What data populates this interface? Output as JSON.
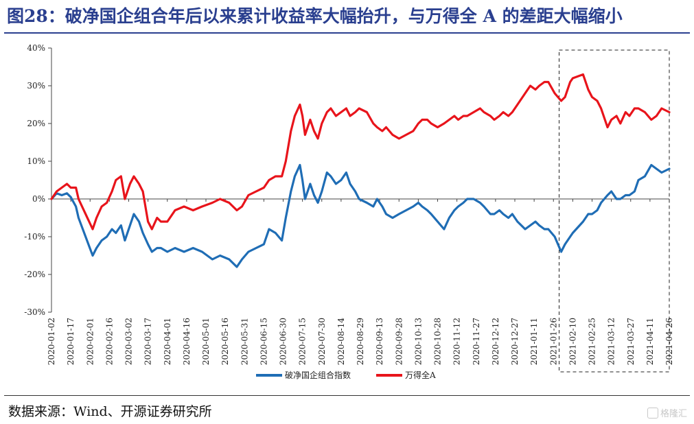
{
  "title": "图28：破净国企组合年后以来累计收益率大幅抬升，与万得全 A 的差距大幅缩小",
  "source": "数据来源：Wind、开源证券研究所",
  "watermark": "格隆汇",
  "chart_data": {
    "type": "line",
    "title": "",
    "xlabel": "",
    "ylabel": "",
    "ylim": [
      -30,
      40
    ],
    "yticks": [
      "-30%",
      "-20%",
      "-10%",
      "0%",
      "10%",
      "20%",
      "30%",
      "40%"
    ],
    "x_tick_labels": [
      "2020-01-02",
      "2020-01-17",
      "2020-02-01",
      "2020-02-16",
      "2020-03-02",
      "2020-03-17",
      "2020-04-01",
      "2020-04-16",
      "2020-05-01",
      "2020-05-16",
      "2020-05-31",
      "2020-06-15",
      "2020-06-30",
      "2020-07-15",
      "2020-07-30",
      "2020-08-14",
      "2020-08-29",
      "2020-09-13",
      "2020-09-28",
      "2020-10-13",
      "2020-10-28",
      "2020-11-12",
      "2020-11-27",
      "2020-12-12",
      "2020-12-27",
      "2021-01-11",
      "2021-01-26",
      "2021-02-10",
      "2021-02-25",
      "2021-03-12",
      "2021-03-27",
      "2021-04-11",
      "2021-04-26"
    ],
    "x_range": [
      "2020-01-02",
      "2021-04-26"
    ],
    "grid": false,
    "legend": "bottom-center",
    "highlight_region": [
      "2021-02-01",
      "2021-04-26"
    ],
    "series": [
      {
        "name": "破净国企组合指数",
        "color": "#1f6db5",
        "points": [
          [
            "2020-01-02",
            0
          ],
          [
            "2020-01-06",
            1.5
          ],
          [
            "2020-01-10",
            1
          ],
          [
            "2020-01-14",
            1.5
          ],
          [
            "2020-01-17",
            0.5
          ],
          [
            "2020-01-21",
            -2
          ],
          [
            "2020-01-23",
            -5
          ],
          [
            "2020-02-03",
            -15
          ],
          [
            "2020-02-06",
            -13
          ],
          [
            "2020-02-10",
            -11
          ],
          [
            "2020-02-14",
            -10
          ],
          [
            "2020-02-18",
            -8
          ],
          [
            "2020-02-21",
            -9
          ],
          [
            "2020-02-25",
            -7
          ],
          [
            "2020-02-28",
            -11
          ],
          [
            "2020-03-03",
            -7
          ],
          [
            "2020-03-06",
            -4
          ],
          [
            "2020-03-10",
            -6
          ],
          [
            "2020-03-13",
            -9
          ],
          [
            "2020-03-17",
            -12
          ],
          [
            "2020-03-20",
            -14
          ],
          [
            "2020-03-24",
            -13
          ],
          [
            "2020-03-27",
            -13
          ],
          [
            "2020-04-01",
            -14
          ],
          [
            "2020-04-07",
            -13
          ],
          [
            "2020-04-14",
            -14
          ],
          [
            "2020-04-21",
            -13
          ],
          [
            "2020-04-28",
            -14
          ],
          [
            "2020-05-06",
            -16
          ],
          [
            "2020-05-12",
            -15
          ],
          [
            "2020-05-19",
            -16
          ],
          [
            "2020-05-25",
            -18
          ],
          [
            "2020-05-29",
            -16
          ],
          [
            "2020-06-03",
            -14
          ],
          [
            "2020-06-09",
            -13
          ],
          [
            "2020-06-15",
            -12
          ],
          [
            "2020-06-19",
            -8
          ],
          [
            "2020-06-24",
            -9
          ],
          [
            "2020-06-29",
            -11
          ],
          [
            "2020-07-02",
            -5
          ],
          [
            "2020-07-06",
            2
          ],
          [
            "2020-07-09",
            6
          ],
          [
            "2020-07-13",
            9
          ],
          [
            "2020-07-15",
            5
          ],
          [
            "2020-07-17",
            0
          ],
          [
            "2020-07-21",
            4
          ],
          [
            "2020-07-24",
            1
          ],
          [
            "2020-07-27",
            -1
          ],
          [
            "2020-07-30",
            2
          ],
          [
            "2020-08-03",
            7
          ],
          [
            "2020-08-06",
            6
          ],
          [
            "2020-08-10",
            4
          ],
          [
            "2020-08-14",
            5
          ],
          [
            "2020-08-18",
            7
          ],
          [
            "2020-08-21",
            4
          ],
          [
            "2020-08-25",
            2
          ],
          [
            "2020-08-28",
            0
          ],
          [
            "2020-09-03",
            -1
          ],
          [
            "2020-09-08",
            -2
          ],
          [
            "2020-09-11",
            0
          ],
          [
            "2020-09-15",
            -2
          ],
          [
            "2020-09-18",
            -4
          ],
          [
            "2020-09-23",
            -5
          ],
          [
            "2020-09-28",
            -4
          ],
          [
            "2020-10-09",
            -2
          ],
          [
            "2020-10-13",
            -1
          ],
          [
            "2020-10-16",
            -2
          ],
          [
            "2020-10-20",
            -3
          ],
          [
            "2020-10-23",
            -4
          ],
          [
            "2020-10-28",
            -6
          ],
          [
            "2020-11-02",
            -8
          ],
          [
            "2020-11-06",
            -5
          ],
          [
            "2020-11-10",
            -3
          ],
          [
            "2020-11-13",
            -2
          ],
          [
            "2020-11-17",
            -1
          ],
          [
            "2020-11-20",
            0
          ],
          [
            "2020-11-25",
            0
          ],
          [
            "2020-11-30",
            -1
          ],
          [
            "2020-12-03",
            -2
          ],
          [
            "2020-12-08",
            -4
          ],
          [
            "2020-12-11",
            -4
          ],
          [
            "2020-12-15",
            -3
          ],
          [
            "2020-12-18",
            -4
          ],
          [
            "2020-12-22",
            -5
          ],
          [
            "2020-12-25",
            -4
          ],
          [
            "2020-12-29",
            -6
          ],
          [
            "2021-01-04",
            -8
          ],
          [
            "2021-01-08",
            -7
          ],
          [
            "2021-01-12",
            -6
          ],
          [
            "2021-01-15",
            -7
          ],
          [
            "2021-01-19",
            -8
          ],
          [
            "2021-01-22",
            -8
          ],
          [
            "2021-01-27",
            -10
          ],
          [
            "2021-02-01",
            -14
          ],
          [
            "2021-02-04",
            -12
          ],
          [
            "2021-02-08",
            -10
          ],
          [
            "2021-02-10",
            -9
          ],
          [
            "2021-02-18",
            -6
          ],
          [
            "2021-02-22",
            -4
          ],
          [
            "2021-02-25",
            -4
          ],
          [
            "2021-03-01",
            -3
          ],
          [
            "2021-03-04",
            -1
          ],
          [
            "2021-03-09",
            1
          ],
          [
            "2021-03-12",
            2
          ],
          [
            "2021-03-16",
            0
          ],
          [
            "2021-03-19",
            0
          ],
          [
            "2021-03-23",
            1
          ],
          [
            "2021-03-26",
            1
          ],
          [
            "2021-03-30",
            2
          ],
          [
            "2021-04-02",
            5
          ],
          [
            "2021-04-07",
            6
          ],
          [
            "2021-04-12",
            9
          ],
          [
            "2021-04-16",
            8
          ],
          [
            "2021-04-20",
            7
          ],
          [
            "2021-04-26",
            8
          ]
        ]
      },
      {
        "name": "万得全A",
        "color": "#e8141b",
        "points": [
          [
            "2020-01-02",
            0
          ],
          [
            "2020-01-06",
            2
          ],
          [
            "2020-01-10",
            3
          ],
          [
            "2020-01-14",
            4
          ],
          [
            "2020-01-17",
            3
          ],
          [
            "2020-01-21",
            3
          ],
          [
            "2020-01-23",
            0
          ],
          [
            "2020-02-03",
            -8
          ],
          [
            "2020-02-06",
            -5
          ],
          [
            "2020-02-10",
            -2
          ],
          [
            "2020-02-14",
            -1
          ],
          [
            "2020-02-18",
            2
          ],
          [
            "2020-02-21",
            5
          ],
          [
            "2020-02-25",
            6
          ],
          [
            "2020-02-28",
            0
          ],
          [
            "2020-03-03",
            4
          ],
          [
            "2020-03-06",
            6
          ],
          [
            "2020-03-10",
            4
          ],
          [
            "2020-03-13",
            2
          ],
          [
            "2020-03-17",
            -6
          ],
          [
            "2020-03-20",
            -8
          ],
          [
            "2020-03-24",
            -5
          ],
          [
            "2020-03-27",
            -6
          ],
          [
            "2020-04-01",
            -6
          ],
          [
            "2020-04-07",
            -3
          ],
          [
            "2020-04-14",
            -2
          ],
          [
            "2020-04-21",
            -3
          ],
          [
            "2020-04-28",
            -2
          ],
          [
            "2020-05-06",
            -1
          ],
          [
            "2020-05-12",
            0
          ],
          [
            "2020-05-19",
            -1
          ],
          [
            "2020-05-25",
            -3
          ],
          [
            "2020-05-29",
            -2
          ],
          [
            "2020-06-03",
            1
          ],
          [
            "2020-06-09",
            2
          ],
          [
            "2020-06-15",
            3
          ],
          [
            "2020-06-19",
            5
          ],
          [
            "2020-06-24",
            6
          ],
          [
            "2020-06-29",
            6
          ],
          [
            "2020-07-02",
            10
          ],
          [
            "2020-07-06",
            18
          ],
          [
            "2020-07-09",
            22
          ],
          [
            "2020-07-13",
            25
          ],
          [
            "2020-07-15",
            22
          ],
          [
            "2020-07-17",
            17
          ],
          [
            "2020-07-21",
            21
          ],
          [
            "2020-07-24",
            18
          ],
          [
            "2020-07-27",
            16
          ],
          [
            "2020-07-30",
            20
          ],
          [
            "2020-08-03",
            23
          ],
          [
            "2020-08-06",
            24
          ],
          [
            "2020-08-10",
            22
          ],
          [
            "2020-08-14",
            23
          ],
          [
            "2020-08-18",
            24
          ],
          [
            "2020-08-21",
            22
          ],
          [
            "2020-08-25",
            23
          ],
          [
            "2020-08-28",
            24
          ],
          [
            "2020-09-03",
            23
          ],
          [
            "2020-09-08",
            20
          ],
          [
            "2020-09-11",
            19
          ],
          [
            "2020-09-15",
            18
          ],
          [
            "2020-09-18",
            19
          ],
          [
            "2020-09-23",
            17
          ],
          [
            "2020-09-28",
            16
          ],
          [
            "2020-10-09",
            18
          ],
          [
            "2020-10-13",
            20
          ],
          [
            "2020-10-16",
            21
          ],
          [
            "2020-10-20",
            21
          ],
          [
            "2020-10-23",
            20
          ],
          [
            "2020-10-28",
            19
          ],
          [
            "2020-11-02",
            20
          ],
          [
            "2020-11-06",
            21
          ],
          [
            "2020-11-10",
            22
          ],
          [
            "2020-11-13",
            21
          ],
          [
            "2020-11-17",
            22
          ],
          [
            "2020-11-20",
            22
          ],
          [
            "2020-11-25",
            23
          ],
          [
            "2020-11-30",
            24
          ],
          [
            "2020-12-03",
            23
          ],
          [
            "2020-12-08",
            22
          ],
          [
            "2020-12-11",
            21
          ],
          [
            "2020-12-15",
            22
          ],
          [
            "2020-12-18",
            23
          ],
          [
            "2020-12-22",
            22
          ],
          [
            "2020-12-25",
            23
          ],
          [
            "2020-12-29",
            25
          ],
          [
            "2021-01-04",
            28
          ],
          [
            "2021-01-08",
            30
          ],
          [
            "2021-01-12",
            29
          ],
          [
            "2021-01-15",
            30
          ],
          [
            "2021-01-19",
            31
          ],
          [
            "2021-01-22",
            31
          ],
          [
            "2021-01-27",
            28
          ],
          [
            "2021-02-01",
            26
          ],
          [
            "2021-02-04",
            27
          ],
          [
            "2021-02-08",
            31
          ],
          [
            "2021-02-10",
            32
          ],
          [
            "2021-02-18",
            33
          ],
          [
            "2021-02-22",
            29
          ],
          [
            "2021-02-25",
            27
          ],
          [
            "2021-03-01",
            26
          ],
          [
            "2021-03-04",
            24
          ],
          [
            "2021-03-09",
            19
          ],
          [
            "2021-03-12",
            21
          ],
          [
            "2021-03-16",
            22
          ],
          [
            "2021-03-19",
            20
          ],
          [
            "2021-03-23",
            23
          ],
          [
            "2021-03-26",
            22
          ],
          [
            "2021-03-30",
            24
          ],
          [
            "2021-04-02",
            24
          ],
          [
            "2021-04-07",
            23
          ],
          [
            "2021-04-12",
            21
          ],
          [
            "2021-04-16",
            22
          ],
          [
            "2021-04-20",
            24
          ],
          [
            "2021-04-26",
            23
          ]
        ]
      }
    ]
  }
}
